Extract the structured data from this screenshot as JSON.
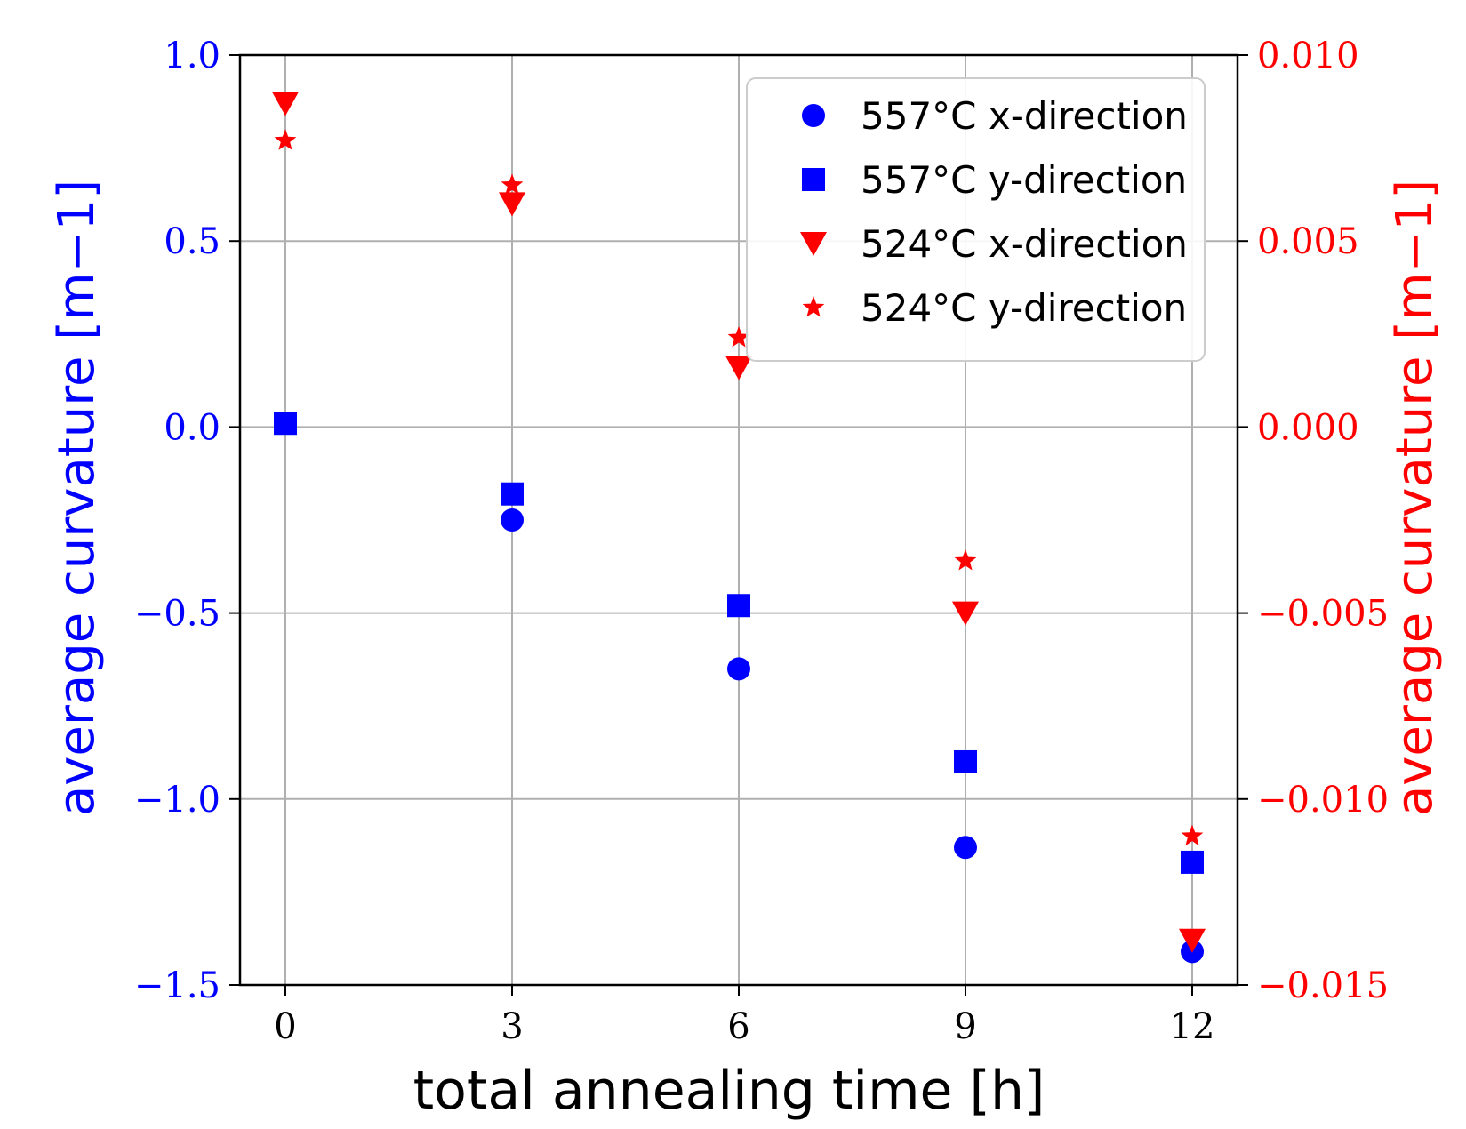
{
  "chart_data": {
    "type": "scatter",
    "xlabel": "total annealing time [h]",
    "ylabel_left": "average curvature [m−1]",
    "ylabel_right": "average curvature [m−1]",
    "x_ticks": [
      "0",
      "3",
      "6",
      "9",
      "12"
    ],
    "y_left_ticks": [
      "1.0",
      "0.5",
      "0.0",
      "−0.5",
      "−1.0",
      "−1.5"
    ],
    "y_right_ticks": [
      "0.010",
      "0.005",
      "0.000",
      "−0.005",
      "−0.010",
      "−0.015"
    ],
    "xlim": [
      -0.6,
      12.6
    ],
    "ylim_left": [
      -1.5,
      1.0
    ],
    "ylim_right": [
      -0.015,
      0.01
    ],
    "grid": true,
    "legend_position": "top-right",
    "colors": {
      "left_axis": "#0000ff",
      "right_axis": "#ff0000"
    },
    "series": [
      {
        "name": "557°C x-direction",
        "axis": "left",
        "marker": "circle",
        "color": "#0000ff",
        "x": [
          3,
          6,
          9,
          12
        ],
        "y": [
          -0.25,
          -0.65,
          -1.13,
          -1.41
        ]
      },
      {
        "name": "557°C y-direction",
        "axis": "left",
        "marker": "square",
        "color": "#0000ff",
        "x": [
          0,
          3,
          6,
          9,
          12
        ],
        "y": [
          0.01,
          -0.18,
          -0.48,
          -0.9,
          -1.17
        ]
      },
      {
        "name": "524°C x-direction",
        "axis": "right",
        "marker": "triangle-down",
        "color": "#ff0000",
        "x": [
          0,
          3,
          6,
          9,
          12
        ],
        "y": [
          0.0087,
          0.006,
          0.0016,
          -0.005,
          -0.0138
        ]
      },
      {
        "name": "524°C y-direction",
        "axis": "right",
        "marker": "star",
        "color": "#ff0000",
        "x": [
          0,
          3,
          6,
          9,
          12
        ],
        "y": [
          0.0077,
          0.0065,
          0.0024,
          -0.0036,
          -0.011
        ]
      }
    ]
  }
}
